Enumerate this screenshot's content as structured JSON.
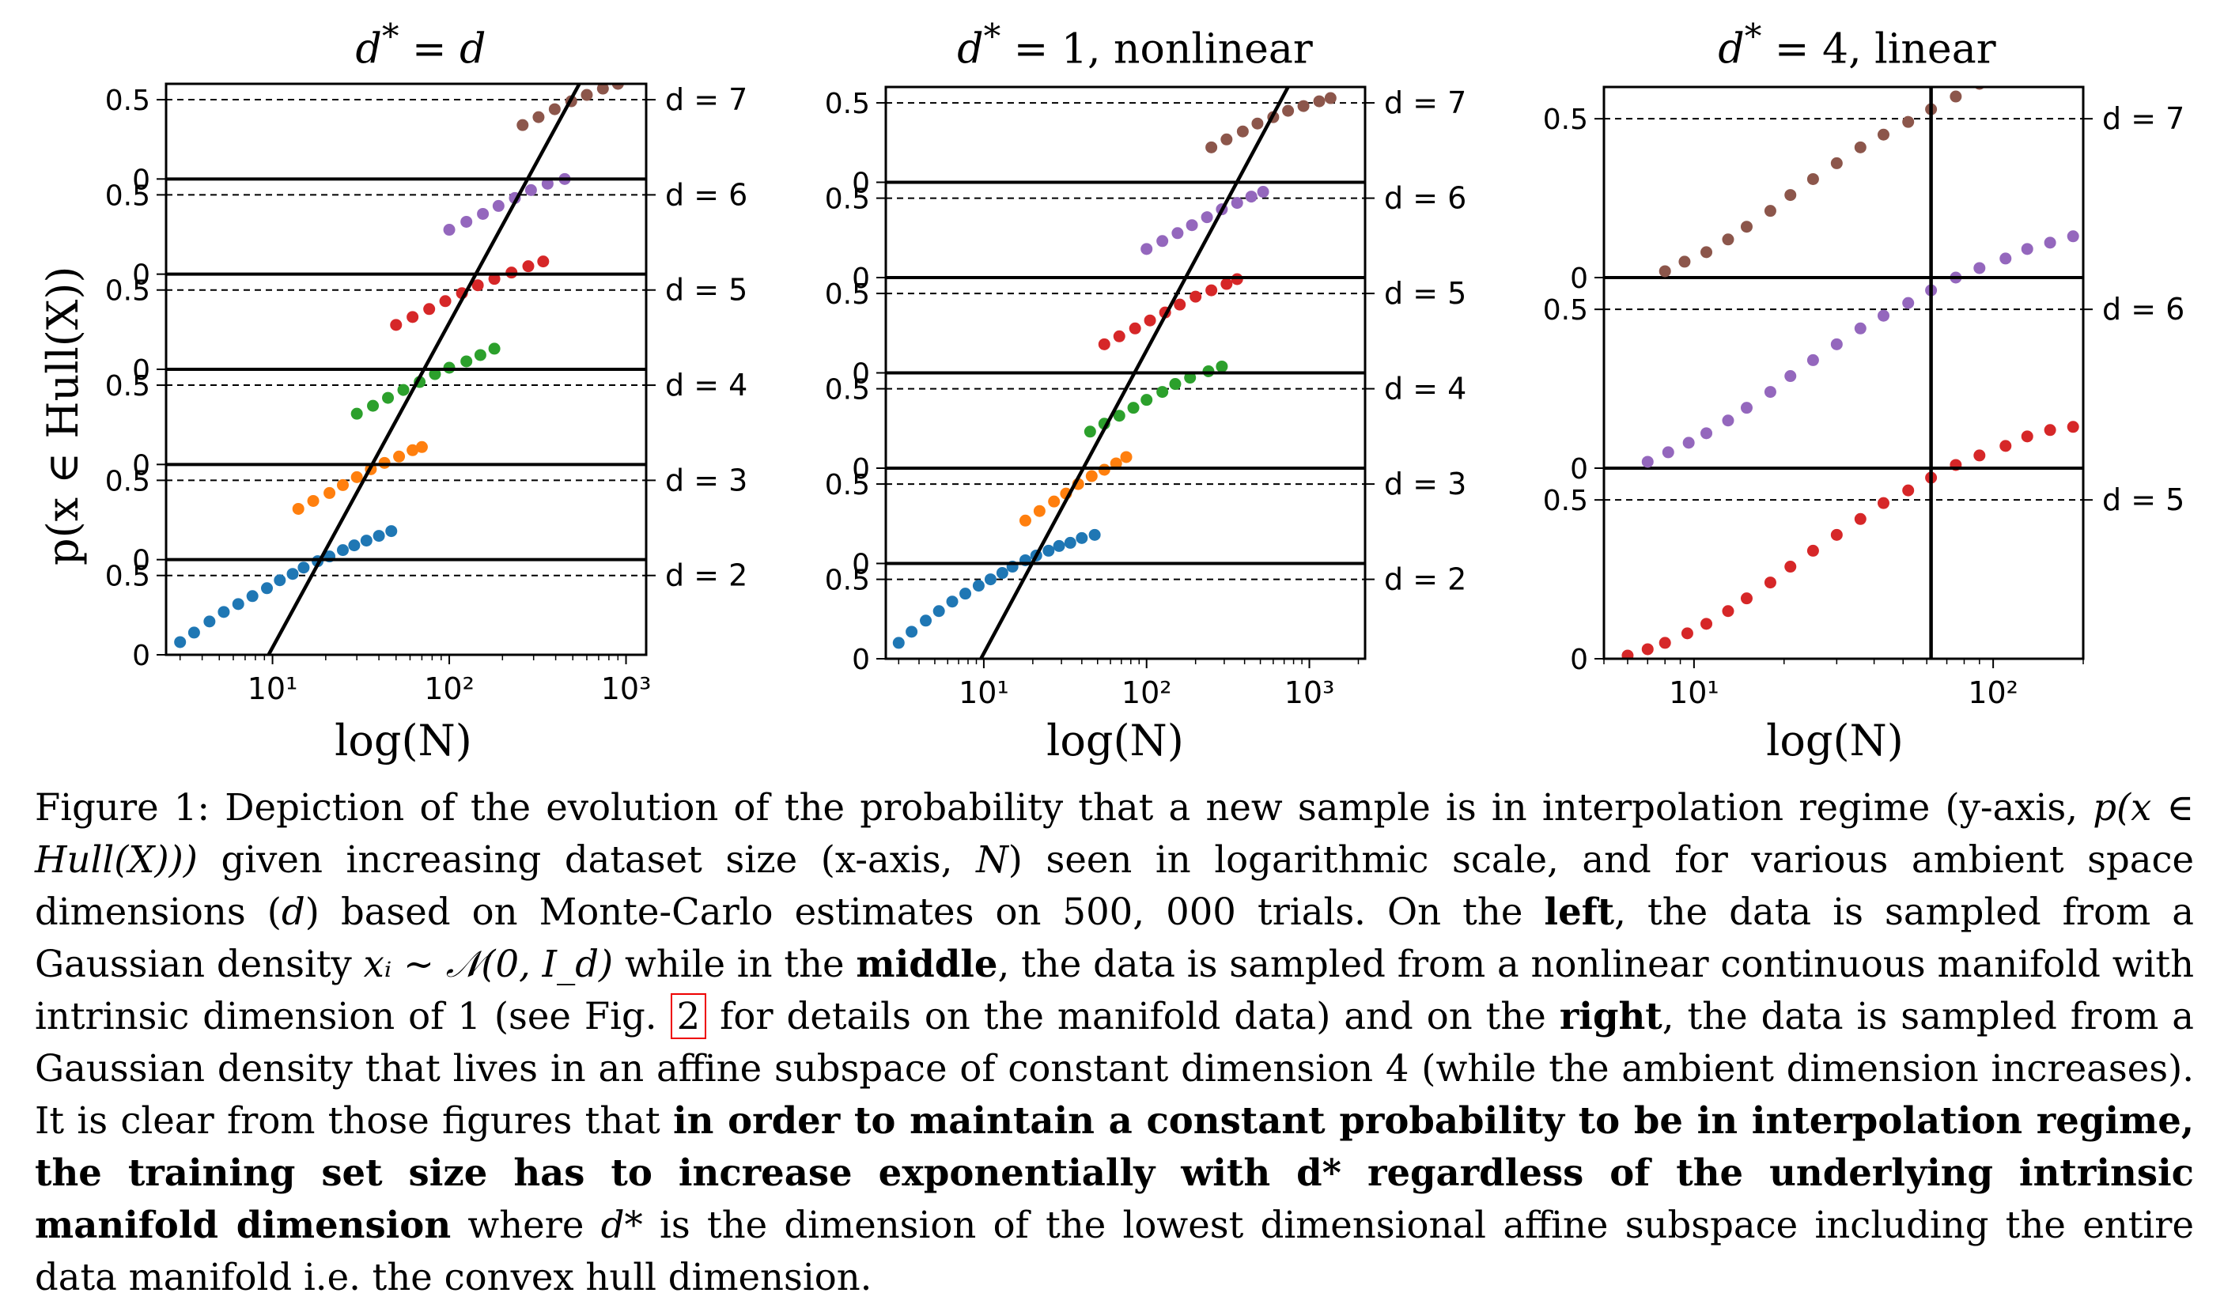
{
  "figure": {
    "panels": [
      {
        "title_parts": [
          "d",
          "*",
          " = ",
          "d",
          ""
        ],
        "xlabel": "log(N)",
        "ylabel": "p(x ∈ Hull(X))"
      },
      {
        "title_parts": [
          "d",
          "*",
          " = 1, ",
          "",
          "nonlinear"
        ],
        "xlabel": "log(N)"
      },
      {
        "title_parts": [
          "d",
          "*",
          " = 4, ",
          "",
          "linear"
        ],
        "xlabel": "log(N)"
      }
    ]
  },
  "chart_data": [
    {
      "type": "scatter",
      "title": "d* = d",
      "xlabel": "log(N)",
      "ylabel": "p(x ∈ Hull(X))",
      "xscale": "log",
      "xlim": [
        2.5,
        1300
      ],
      "xticks": [
        10,
        100,
        1000
      ],
      "xtick_labels": [
        "10¹",
        "10²",
        "10³"
      ],
      "yticks_per_row": [
        "0",
        "0.5"
      ],
      "rows": [
        {
          "label": "d = 2",
          "color": "#1f77b4",
          "x": [
            3,
            3.6,
            4.4,
            5.3,
            6.4,
            7.7,
            9.3,
            11,
            13,
            15,
            18,
            21,
            25,
            29,
            34,
            40,
            47
          ],
          "y": [
            0.08,
            0.14,
            0.21,
            0.27,
            0.32,
            0.37,
            0.42,
            0.47,
            0.51,
            0.55,
            0.59,
            0.62,
            0.66,
            0.69,
            0.72,
            0.75,
            0.78
          ]
        },
        {
          "label": "d = 3",
          "color": "#ff7f0e",
          "x": [
            14,
            17,
            21,
            25,
            30,
            36,
            43,
            52,
            62,
            70
          ],
          "y": [
            0.32,
            0.37,
            0.42,
            0.47,
            0.52,
            0.57,
            0.61,
            0.65,
            0.69,
            0.71
          ]
        },
        {
          "label": "d = 4",
          "color": "#2ca02c",
          "x": [
            30,
            37,
            45,
            55,
            68,
            83,
            100,
            125,
            150,
            180
          ],
          "y": [
            0.32,
            0.37,
            0.42,
            0.47,
            0.52,
            0.57,
            0.61,
            0.65,
            0.69,
            0.73
          ]
        },
        {
          "label": "d = 5",
          "color": "#d62728",
          "x": [
            50,
            62,
            77,
            95,
            118,
            145,
            180,
            225,
            280,
            340
          ],
          "y": [
            0.28,
            0.33,
            0.38,
            0.43,
            0.48,
            0.53,
            0.57,
            0.61,
            0.65,
            0.68
          ]
        },
        {
          "label": "d = 6",
          "color": "#9467bd",
          "x": [
            100,
            125,
            155,
            190,
            235,
            290,
            360,
            450
          ],
          "y": [
            0.28,
            0.33,
            0.38,
            0.43,
            0.48,
            0.53,
            0.57,
            0.6
          ]
        },
        {
          "label": "d = 7",
          "color": "#8c564b",
          "x": [
            260,
            320,
            395,
            490,
            600,
            740,
            900
          ],
          "y": [
            0.34,
            0.39,
            0.44,
            0.49,
            0.53,
            0.57,
            0.6
          ]
        }
      ],
      "trend_line": {
        "from": [
          9.5,
          0
        ],
        "to": [
          1000,
          6.9
        ]
      }
    },
    {
      "type": "scatter",
      "title": "d* = 1, nonlinear",
      "xlabel": "log(N)",
      "xscale": "log",
      "xlim": [
        2.5,
        2200
      ],
      "xticks": [
        10,
        100,
        1000
      ],
      "xtick_labels": [
        "10¹",
        "10²",
        "10³"
      ],
      "yticks_per_row": [
        "0",
        "0.5"
      ],
      "rows": [
        {
          "label": "d = 2",
          "color": "#1f77b4",
          "x": [
            3,
            3.6,
            4.4,
            5.3,
            6.4,
            7.7,
            9.3,
            11,
            13,
            15,
            18,
            21,
            25,
            29,
            34,
            40,
            48
          ],
          "y": [
            0.1,
            0.17,
            0.24,
            0.3,
            0.36,
            0.41,
            0.46,
            0.5,
            0.54,
            0.58,
            0.62,
            0.65,
            0.68,
            0.71,
            0.73,
            0.76,
            0.78
          ]
        },
        {
          "label": "d = 3",
          "color": "#ff7f0e",
          "x": [
            18,
            22,
            27,
            32,
            38,
            46,
            55,
            65,
            75
          ],
          "y": [
            0.27,
            0.33,
            0.39,
            0.44,
            0.5,
            0.55,
            0.59,
            0.63,
            0.67
          ]
        },
        {
          "label": "d = 4",
          "color": "#2ca02c",
          "x": [
            45,
            55,
            68,
            83,
            100,
            125,
            150,
            185,
            240,
            290
          ],
          "y": [
            0.23,
            0.28,
            0.33,
            0.38,
            0.43,
            0.48,
            0.53,
            0.57,
            0.61,
            0.64
          ]
        },
        {
          "label": "d = 5",
          "color": "#d62728",
          "x": [
            55,
            68,
            85,
            105,
            130,
            160,
            200,
            250,
            310,
            360
          ],
          "y": [
            0.18,
            0.23,
            0.28,
            0.33,
            0.38,
            0.43,
            0.48,
            0.52,
            0.56,
            0.59
          ]
        },
        {
          "label": "d = 6",
          "color": "#9467bd",
          "x": [
            100,
            125,
            155,
            190,
            235,
            290,
            360,
            440,
            520
          ],
          "y": [
            0.18,
            0.23,
            0.28,
            0.33,
            0.38,
            0.43,
            0.47,
            0.51,
            0.54
          ]
        },
        {
          "label": "d = 7",
          "color": "#8c564b",
          "x": [
            250,
            310,
            390,
            480,
            600,
            740,
            920,
            1150,
            1350
          ],
          "y": [
            0.22,
            0.27,
            0.32,
            0.37,
            0.41,
            0.45,
            0.48,
            0.51,
            0.53
          ]
        }
      ],
      "trend_line": {
        "from": [
          9.6,
          0
        ],
        "to": [
          1400,
          6.88
        ]
      }
    },
    {
      "type": "scatter",
      "title": "d* = 4, linear",
      "xlabel": "log(N)",
      "xscale": "log",
      "xlim": [
        5,
        200
      ],
      "xticks": [
        10,
        100
      ],
      "xtick_labels": [
        "10¹",
        "10²"
      ],
      "yticks_per_row": [
        "0",
        "0.5"
      ],
      "rows": [
        {
          "label": "d = 5",
          "color": "#d62728",
          "x": [
            6,
            7,
            8,
            9.5,
            11,
            13,
            15,
            18,
            21,
            25,
            30,
            36,
            43,
            52,
            62,
            75,
            90,
            110,
            130,
            155,
            185
          ],
          "y": [
            0.01,
            0.03,
            0.05,
            0.08,
            0.11,
            0.15,
            0.19,
            0.24,
            0.29,
            0.34,
            0.39,
            0.44,
            0.49,
            0.53,
            0.57,
            0.61,
            0.64,
            0.67,
            0.7,
            0.72,
            0.73
          ]
        },
        {
          "label": "d = 6",
          "color": "#9467bd",
          "x": [
            7,
            8.2,
            9.6,
            11,
            13,
            15,
            18,
            21,
            25,
            30,
            36,
            43,
            52,
            62,
            75,
            90,
            110,
            130,
            155,
            185
          ],
          "y": [
            0.02,
            0.05,
            0.08,
            0.11,
            0.15,
            0.19,
            0.24,
            0.29,
            0.34,
            0.39,
            0.44,
            0.48,
            0.52,
            0.56,
            0.6,
            0.63,
            0.66,
            0.69,
            0.71,
            0.73
          ]
        },
        {
          "label": "d = 7",
          "color": "#8c564b",
          "x": [
            8,
            9.3,
            11,
            13,
            15,
            18,
            21,
            25,
            30,
            36,
            43,
            52,
            62,
            75,
            90,
            110,
            130,
            155,
            185
          ],
          "y": [
            0.02,
            0.05,
            0.08,
            0.12,
            0.16,
            0.21,
            0.26,
            0.31,
            0.36,
            0.41,
            0.45,
            0.49,
            0.53,
            0.57,
            0.61,
            0.64,
            0.67,
            0.7,
            0.72
          ]
        }
      ],
      "vertical_line_x": 62
    }
  ],
  "caption": {
    "label": "Figure 1:",
    "s1": "Depiction of the evolution of the probability that a new sample is in interpolation regime (y-axis,",
    "s2": "p(x ∈ Hull(X)))",
    "s3": "given increasing dataset size (x-axis,",
    "s4": "N",
    "s5": ") seen in logarithmic scale, and for various ambient space dimensions (",
    "s6": "d",
    "s7": ") based on Monte-Carlo estimates on 500, 000 trials.  On the",
    "left_word": "left",
    "s8": ", the data is sampled from a Gaussian density",
    "s9": "xᵢ ∼ 𝒩(0, I_d)",
    "s10": "while in the",
    "middle_word": "middle",
    "s11": ", the data is sampled from a nonlinear continuous manifold with intrinsic dimension of 1 (see Fig.",
    "fig_ref": "2",
    "s12": "for details on the manifold data) and on the",
    "right_word": "right",
    "s13": ", the data is sampled from a Gaussian density that lives in an affine subspace of constant dimension 4 (while the ambient dimension increases).  It is clear from those figures that",
    "bold_claim": "in order to maintain a constant probability to be in interpolation regime, the training set size has to increase exponentially with d* regardless of the underlying intrinsic manifold dimension",
    "s14": "where",
    "s15": "d*",
    "s16": "is the dimension of the lowest dimensional affine subspace including the entire data manifold i.e. the convex hull dimension."
  }
}
